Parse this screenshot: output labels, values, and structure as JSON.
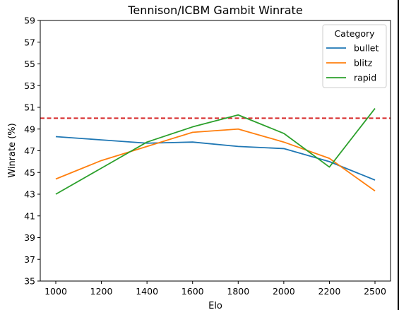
{
  "chart_data": {
    "type": "line",
    "title": "Tennison/ICBM Gambit Winrate",
    "xlabel": "Elo",
    "ylabel": "Winrate (%)",
    "categories": [
      "1000",
      "1200",
      "1400",
      "1600",
      "1800",
      "2000",
      "2200",
      "2500"
    ],
    "ylim": [
      35,
      59
    ],
    "yticks": [
      35,
      37,
      39,
      41,
      43,
      45,
      47,
      49,
      51,
      53,
      55,
      57,
      59
    ],
    "grid": false,
    "reference_line": {
      "y": 50,
      "color": "#d62728",
      "style": "dashed"
    },
    "legend": {
      "title": "Category",
      "placement": "top-right"
    },
    "series": [
      {
        "name": "bullet",
        "color": "#1f77b4",
        "values": [
          48.3,
          48.0,
          47.7,
          47.8,
          47.4,
          47.2,
          46.0,
          44.3
        ]
      },
      {
        "name": "blitz",
        "color": "#ff7f0e",
        "values": [
          44.4,
          46.1,
          47.4,
          48.7,
          49.0,
          47.8,
          46.3,
          43.3
        ]
      },
      {
        "name": "rapid",
        "color": "#2ca02c",
        "values": [
          43.0,
          45.4,
          47.8,
          49.2,
          50.3,
          48.6,
          45.5,
          50.9
        ]
      }
    ]
  }
}
